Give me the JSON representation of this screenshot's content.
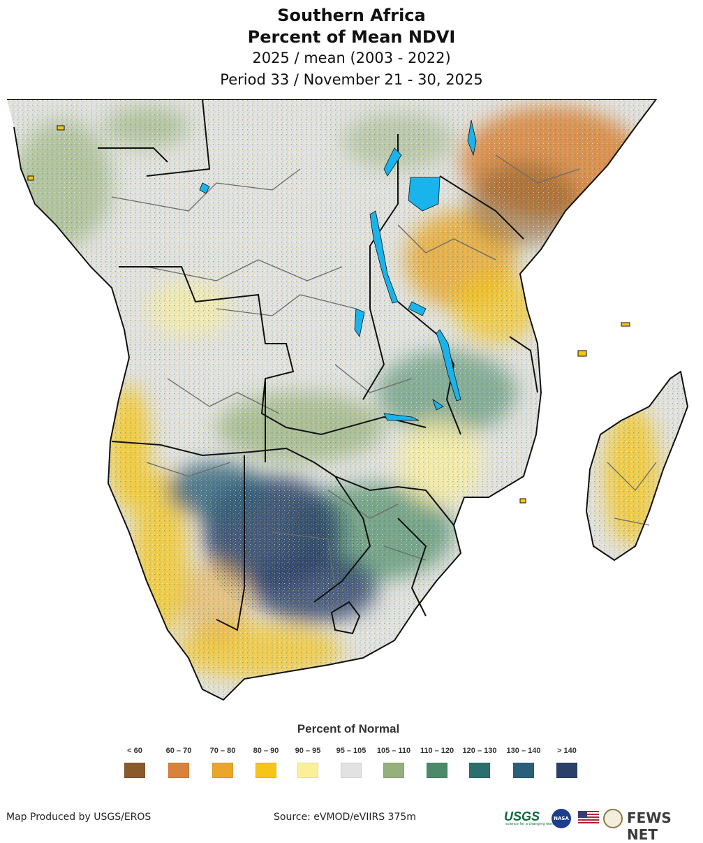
{
  "title": {
    "region": "Southern Africa",
    "product": "Percent of Mean NDVI",
    "comparison": "2025 / mean (2003 - 2022)",
    "period": "Period 33 / November 21 - 30, 2025"
  },
  "legend": {
    "title": "Percent of Normal",
    "classes": [
      {
        "label": "< 60",
        "color": "#8b5a2b"
      },
      {
        "label": "60 – 70",
        "color": "#d9823b"
      },
      {
        "label": "70 – 80",
        "color": "#e9a62a"
      },
      {
        "label": "80 – 90",
        "color": "#f5c518"
      },
      {
        "label": "90 – 95",
        "color": "#fbf09a"
      },
      {
        "label": "95 – 105",
        "color": "#e2e2e2"
      },
      {
        "label": "105 – 110",
        "color": "#95b07c"
      },
      {
        "label": "110 – 120",
        "color": "#4a8a6a"
      },
      {
        "label": "120 – 130",
        "color": "#2b6e6e"
      },
      {
        "label": "130 – 140",
        "color": "#2a5f7a"
      },
      {
        "label": "> 140",
        "color": "#2a3f6a"
      }
    ]
  },
  "map": {
    "water_color": "#19b4ec",
    "border_color": "#111111",
    "admin_color": "#6b6b6b"
  },
  "footer": {
    "producer": "Map Produced by USGS/EROS",
    "source": "Source: eVMOD/eVIIRS 375m"
  },
  "logos": {
    "usgs": "USGS",
    "usgs_tagline": "science for a changing world",
    "nasa": "NASA",
    "fews": "FEWS NET"
  }
}
